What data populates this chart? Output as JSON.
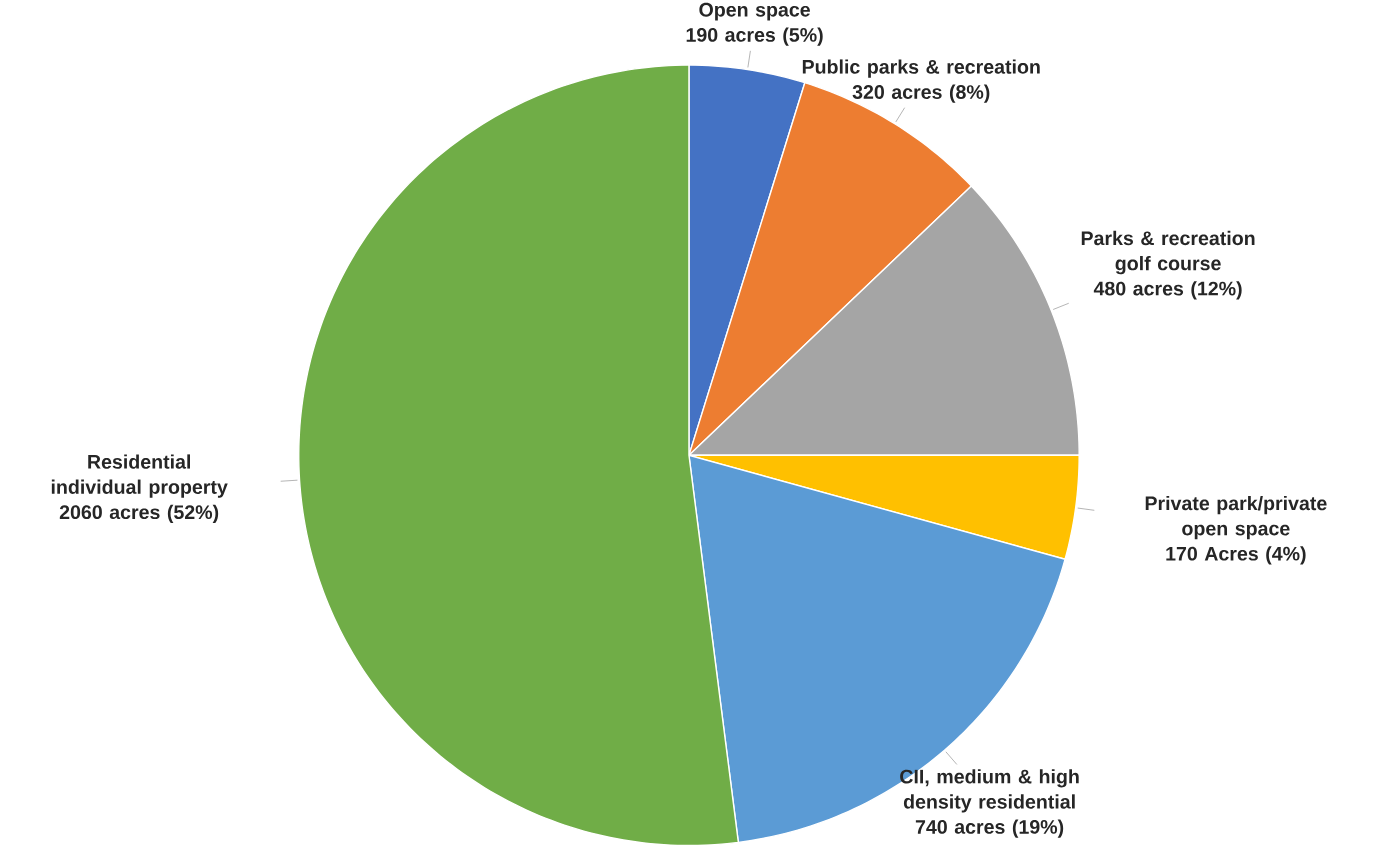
{
  "chart_data": {
    "type": "pie",
    "categories": [
      "Open space",
      "Public parks & recreation",
      "Parks & recreation golf course",
      "Private park/private open space",
      "CII, medium & high density residential",
      "Residential individual property"
    ],
    "values": [
      190,
      320,
      480,
      170,
      740,
      2060
    ],
    "value_labels": [
      "190 acres (5%)",
      "320 acres (8%)",
      "480 acres (12%)",
      "170 Acres (4%)",
      "740 acres (19%)",
      "2060 acres (52%)"
    ],
    "colors": [
      "#4472c4",
      "#ed7d31",
      "#a5a5a5",
      "#ffc000",
      "#5b9bd5",
      "#70ad47"
    ]
  }
}
